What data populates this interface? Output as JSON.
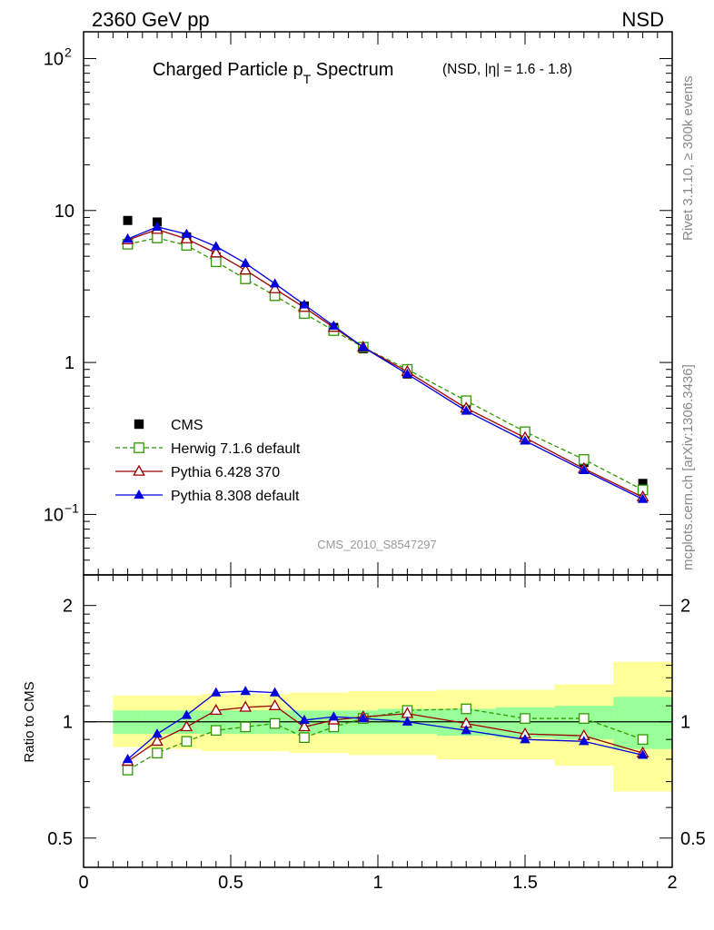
{
  "header": {
    "left": "2360 GeV pp",
    "right": "NSD"
  },
  "title": {
    "main": "Charged Particle p",
    "main_sub": "T",
    "main_suffix": " Spectrum",
    "condition": "(NSD, |η| = 1.6 - 1.8)"
  },
  "side_labels": {
    "rivet": "Rivet 3.1.10, ≥ 300k events",
    "mcplots": "mcplots.cern.ch [arXiv:1306.3436]"
  },
  "watermark": "CMS_2010_S8547297",
  "colors": {
    "cms": "#000000",
    "herwig": "#339900",
    "pythia6": "#990000",
    "pythia8": "#0000dd",
    "band_inner": "#99ff99",
    "band_outer": "#ffff99"
  },
  "chart_data": [
    {
      "type": "scatter",
      "panel": "main",
      "yscale": "log",
      "xlim": [
        0,
        2
      ],
      "ylim": [
        0.04,
        150
      ],
      "y_ticks": [
        {
          "value": 0.1,
          "label": "10",
          "exp": "−1"
        },
        {
          "value": 1,
          "label": "1",
          "exp": ""
        },
        {
          "value": 10,
          "label": "10",
          "exp": ""
        },
        {
          "value": 100,
          "label": "10",
          "exp": "2"
        }
      ],
      "x": [
        0.15,
        0.25,
        0.35,
        0.45,
        0.55,
        0.65,
        0.75,
        0.85,
        0.95,
        1.1,
        1.3,
        1.5,
        1.7,
        1.9
      ],
      "series": [
        {
          "name": "CMS",
          "key": "cms",
          "marker": "square-filled",
          "line": "none",
          "values": [
            8.6,
            8.4,
            6.7,
            4.95,
            3.75,
            2.72,
            2.35,
            1.7,
            1.23,
            0.84,
            0.5,
            0.34,
            0.22,
            0.16
          ]
        },
        {
          "name": "Herwig 7.1.6 default",
          "key": "herwig",
          "marker": "square-open",
          "line": "dashed",
          "values": [
            6.0,
            6.6,
            5.9,
            4.6,
            3.55,
            2.75,
            2.1,
            1.62,
            1.26,
            0.9,
            0.56,
            0.35,
            0.23,
            0.145
          ]
        },
        {
          "name": "Pythia 6.428 370",
          "key": "pythia6",
          "marker": "triangle-open",
          "line": "solid",
          "values": [
            6.4,
            7.5,
            6.5,
            5.25,
            4.05,
            3.05,
            2.3,
            1.7,
            1.26,
            0.87,
            0.5,
            0.32,
            0.2,
            0.13
          ]
        },
        {
          "name": "Pythia 8.308 default",
          "key": "pythia8",
          "marker": "triangle-filled",
          "line": "solid",
          "values": [
            6.5,
            7.8,
            7.0,
            5.8,
            4.5,
            3.3,
            2.4,
            1.74,
            1.26,
            0.84,
            0.48,
            0.305,
            0.195,
            0.126
          ]
        }
      ]
    },
    {
      "type": "line",
      "panel": "ratio",
      "ylabel": "Ratio to CMS",
      "yscale": "log",
      "xlim": [
        0,
        2
      ],
      "ylim": [
        0.42,
        2.4
      ],
      "x_ticks": [
        "0",
        "0.5",
        "1",
        "1.5",
        "2"
      ],
      "x_tick_values": [
        0,
        0.5,
        1,
        1.5,
        2
      ],
      "y_ticks": [
        "0.5",
        "1",
        "2"
      ],
      "y_tick_values": [
        0.5,
        1,
        2
      ],
      "x": [
        0.15,
        0.25,
        0.35,
        0.45,
        0.55,
        0.65,
        0.75,
        0.85,
        0.95,
        1.1,
        1.3,
        1.5,
        1.7,
        1.9
      ],
      "bins": [
        [
          0.1,
          0.2
        ],
        [
          0.2,
          0.3
        ],
        [
          0.3,
          0.4
        ],
        [
          0.4,
          0.5
        ],
        [
          0.5,
          0.6
        ],
        [
          0.6,
          0.7
        ],
        [
          0.7,
          0.8
        ],
        [
          0.8,
          0.9
        ],
        [
          0.9,
          1.0
        ],
        [
          1.0,
          1.2
        ],
        [
          1.2,
          1.4
        ],
        [
          1.4,
          1.6
        ],
        [
          1.6,
          1.8
        ],
        [
          1.8,
          2.0
        ]
      ],
      "band_inner": [
        [
          0.93,
          1.07
        ],
        [
          0.93,
          1.07
        ],
        [
          0.93,
          1.07
        ],
        [
          0.93,
          1.07
        ],
        [
          0.93,
          1.07
        ],
        [
          0.93,
          1.07
        ],
        [
          0.93,
          1.07
        ],
        [
          0.93,
          1.07
        ],
        [
          0.93,
          1.07
        ],
        [
          0.93,
          1.08
        ],
        [
          0.92,
          1.08
        ],
        [
          0.91,
          1.09
        ],
        [
          0.9,
          1.1
        ],
        [
          0.85,
          1.16
        ]
      ],
      "band_outer": [
        [
          0.86,
          1.17
        ],
        [
          0.85,
          1.17
        ],
        [
          0.85,
          1.17
        ],
        [
          0.84,
          1.18
        ],
        [
          0.84,
          1.18
        ],
        [
          0.84,
          1.18
        ],
        [
          0.83,
          1.19
        ],
        [
          0.83,
          1.19
        ],
        [
          0.82,
          1.2
        ],
        [
          0.82,
          1.2
        ],
        [
          0.8,
          1.21
        ],
        [
          0.8,
          1.21
        ],
        [
          0.77,
          1.25
        ],
        [
          0.66,
          1.43
        ]
      ],
      "series": [
        {
          "name": "Herwig 7.1.6 default",
          "key": "herwig",
          "marker": "square-open",
          "line": "dashed",
          "values": [
            0.75,
            0.83,
            0.89,
            0.95,
            0.97,
            0.99,
            0.91,
            0.97,
            1.02,
            1.07,
            1.08,
            1.02,
            1.02,
            0.9
          ]
        },
        {
          "name": "Pythia 6.428 370",
          "key": "pythia6",
          "marker": "triangle-open",
          "line": "solid",
          "values": [
            0.79,
            0.89,
            0.97,
            1.07,
            1.09,
            1.1,
            0.97,
            1.01,
            1.03,
            1.05,
            0.99,
            0.93,
            0.92,
            0.83
          ]
        },
        {
          "name": "Pythia 8.308 default",
          "key": "pythia8",
          "marker": "triangle-filled",
          "line": "solid",
          "values": [
            0.8,
            0.93,
            1.04,
            1.19,
            1.2,
            1.19,
            1.01,
            1.03,
            1.02,
            1.0,
            0.95,
            0.9,
            0.89,
            0.82
          ]
        }
      ]
    }
  ]
}
